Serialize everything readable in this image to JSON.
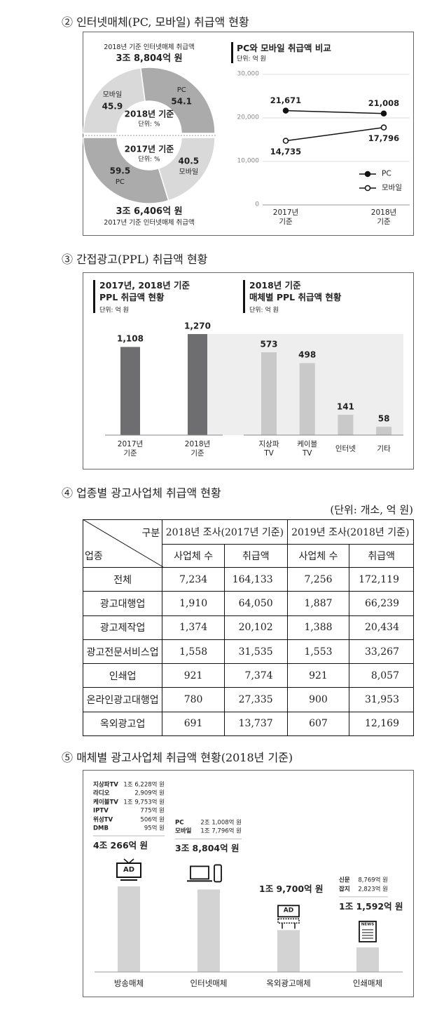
{
  "sections": {
    "internet": {
      "heading": "② 인터넷매체(PC, 모바일) 취급액 현황",
      "donut": {
        "type": "pie",
        "halves": [
          {
            "caption": "2018년 기준 인터넷매체 취급액",
            "total": "3조 8,804억 원",
            "center": "2018년 기준",
            "unit": "단위: %",
            "categories": [
              "모바일",
              "PC"
            ],
            "values": [
              45.9,
              54.1
            ],
            "colors": [
              "#d9d9d9",
              "#ababab"
            ]
          },
          {
            "caption": "2017년 기준 인터넷매체 취급액",
            "total": "3조 6,406억 원",
            "center": "2017년 기준",
            "unit": "단위: %",
            "categories": [
              "PC",
              "모바일"
            ],
            "values": [
              59.5,
              40.5
            ],
            "colors": [
              "#ababab",
              "#d9d9d9"
            ]
          }
        ]
      },
      "line": {
        "type": "line",
        "title": "PC와 모바일 취급액 비교",
        "unit": "단위: 억 원",
        "categories": [
          "2017년\n기준",
          "2018년\n기준"
        ],
        "ylim": [
          0,
          30000
        ],
        "yticks": [
          0,
          {
            "value": 10000,
            "label": "10,000"
          },
          {
            "value": 20000,
            "label": "20,000"
          },
          {
            "value": 30000,
            "label": "30,000"
          }
        ],
        "grid": true,
        "legend": "lower right",
        "series": [
          {
            "name": "PC",
            "color": "#111111",
            "marker": "filled",
            "values": [
              21671,
              21008
            ],
            "value_labels": [
              "21,671",
              "21,008"
            ]
          },
          {
            "name": "모바일",
            "color": "#111111",
            "marker": "open",
            "values": [
              14735,
              17796
            ],
            "value_labels": [
              "14,735",
              "17,796"
            ]
          }
        ]
      }
    },
    "ppl": {
      "heading": "③ 간접광고(PPL) 취급액 현황",
      "left": {
        "type": "bar",
        "title": "2017년, 2018년 기준\nPPL 취급액 현황",
        "unit": "단위: 억 원",
        "categories": [
          "2017년\n기준",
          "2018년\n기준"
        ],
        "values": [
          1108,
          1270
        ],
        "value_labels": [
          "1,108",
          "1,270"
        ],
        "color": "#6e6e70"
      },
      "right": {
        "type": "bar",
        "title": "2018년 기준\n매체별 PPL 취급액 현황",
        "unit": "단위: 억 원",
        "categories": [
          "지상파\nTV",
          "케이블\nTV",
          "인터넷",
          "기타"
        ],
        "values": [
          573,
          498,
          141,
          58
        ],
        "color": "#c9c9c9"
      }
    },
    "table": {
      "heading": "④ 업종별 광고사업체 취급액 현황",
      "unit": "(단위: 개소, 억 원)",
      "corner": {
        "top": "구분",
        "bottom": "업종"
      },
      "groups": [
        "2018년 조사(2017년 기준)",
        "2019년 조사(2018년 기준)"
      ],
      "columns": [
        "사업체 수",
        "취급액",
        "사업체 수",
        "취급액"
      ],
      "rows": [
        [
          "전체",
          "7,234",
          "164,133",
          "7,256",
          "172,119"
        ],
        [
          "광고대행업",
          "1,910",
          "64,050",
          "1,887",
          "66,239"
        ],
        [
          "광고제작업",
          "1,374",
          "20,102",
          "1,388",
          "20,434"
        ],
        [
          "광고전문서비스업",
          "1,558",
          "31,535",
          "1,553",
          "33,267"
        ],
        [
          "인쇄업",
          "921",
          "7,374",
          "921",
          "8,057"
        ],
        [
          "온라인광고대행업",
          "780",
          "27,335",
          "900",
          "31,953"
        ],
        [
          "옥외광고업",
          "691",
          "13,737",
          "607",
          "12,169"
        ]
      ]
    },
    "media": {
      "heading": "⑤ 매체별 광고사업체 취급액 현황(2018년 기준)",
      "type": "bar",
      "categories": [
        "방송매체",
        "인터넷매체",
        "옥외광고매체",
        "인쇄매체"
      ],
      "values": [
        40266,
        38804,
        19700,
        11592
      ],
      "value_labels": [
        "4조 266억 원",
        "3조 8,804억 원",
        "1조 9,700억 원",
        "1조 1,592억 원"
      ],
      "color": "#d3d3d3",
      "breakdowns": [
        [
          {
            "name": "지상파TV",
            "amount": "1조 6,228억 원"
          },
          {
            "name": "라디오",
            "amount": "2,909억 원"
          },
          {
            "name": "케이블TV",
            "amount": "1조 9,753억 원"
          },
          {
            "name": "IPTV",
            "amount": "775억 원"
          },
          {
            "name": "위성TV",
            "amount": "506억 원"
          },
          {
            "name": "DMB",
            "amount": "95억 원"
          }
        ],
        [
          {
            "name": "PC",
            "amount": "2조 1,008억 원"
          },
          {
            "name": "모바일",
            "amount": "1조 7,796억 원"
          }
        ],
        [],
        [
          {
            "name": "신문",
            "amount": "8,769억 원"
          },
          {
            "name": "잡지",
            "amount": "2,823억 원"
          }
        ]
      ],
      "icon_labels": [
        "AD",
        "AD",
        "NEWS"
      ]
    }
  }
}
